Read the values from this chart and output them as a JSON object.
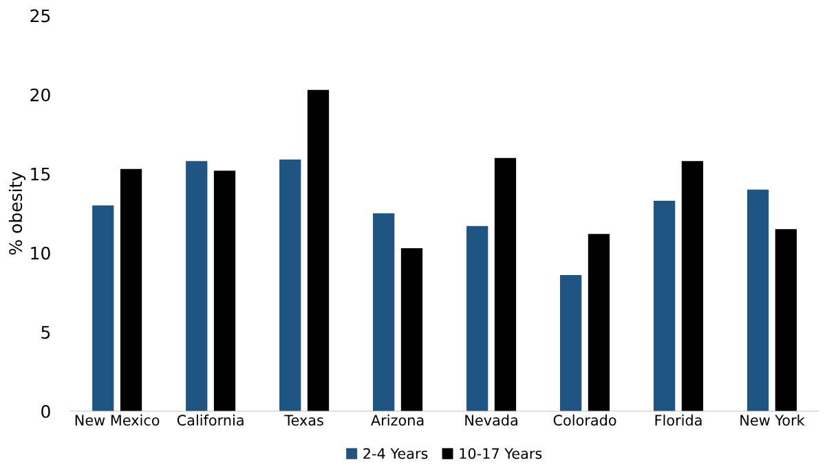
{
  "chart_data": {
    "type": "bar",
    "ylabel": "% obesity",
    "categories": [
      "New Mexico",
      "California",
      "Texas",
      "Arizona",
      "Nevada",
      "Colorado",
      "Florida",
      "New York"
    ],
    "series": [
      {
        "name": "2-4 Years",
        "color": "#1f5582",
        "values": [
          13.0,
          15.8,
          15.9,
          12.5,
          11.7,
          8.6,
          13.3,
          14.0
        ]
      },
      {
        "name": "10-17 Years",
        "color": "#000000",
        "values": [
          15.3,
          15.2,
          20.3,
          10.3,
          16.0,
          11.2,
          15.8,
          11.5
        ]
      }
    ],
    "ylim": [
      0,
      25
    ],
    "yticks": [
      0,
      5,
      10,
      15,
      20,
      25
    ],
    "grid": false,
    "legend": "bottom"
  }
}
